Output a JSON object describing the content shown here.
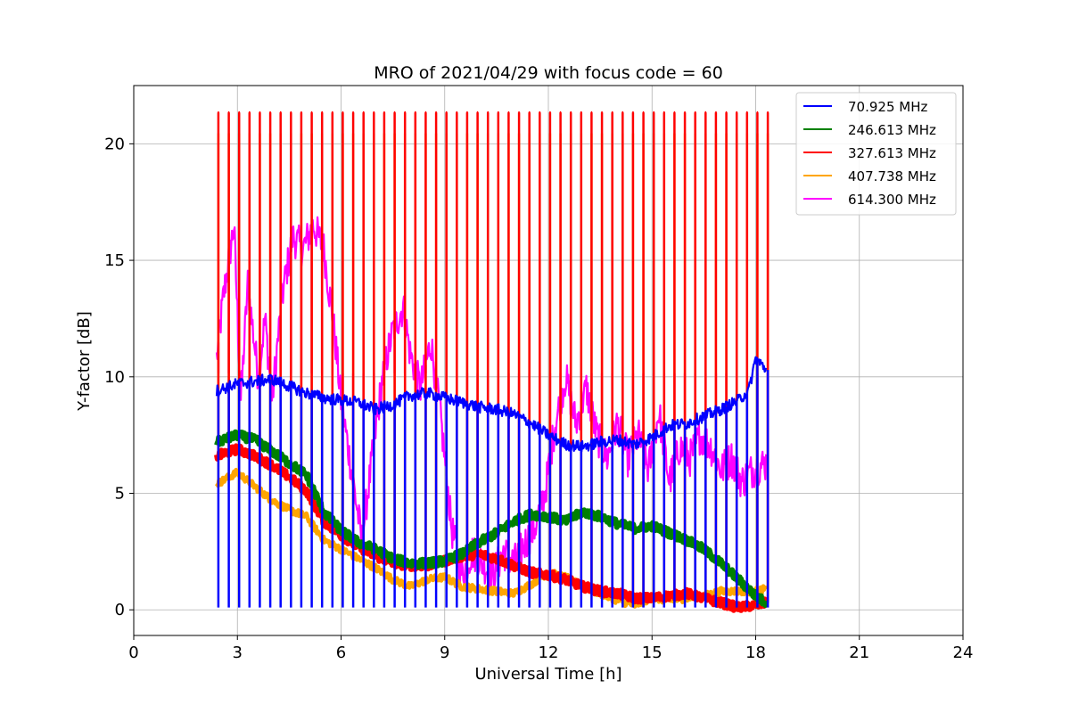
{
  "chart_data": {
    "type": "line",
    "title": "MRO of 2021/04/29 with focus code = 60",
    "xlabel": "Universal Time [h]",
    "ylabel": "Y-factor [dB]",
    "xlim": [
      0,
      24
    ],
    "ylim": [
      -1.1,
      22.5
    ],
    "xticks": [
      0,
      3,
      6,
      9,
      12,
      15,
      18,
      21,
      24
    ],
    "yticks": [
      0,
      5,
      10,
      15,
      20
    ],
    "grid": true,
    "legend_position": "top-right",
    "calibration_pulses": {
      "start_h": 2.45,
      "period_h": 0.3,
      "end_h": 18.35
    },
    "series": [
      {
        "name": "70.925 MHz",
        "color": "#0000ff",
        "pulse_low": 0.1,
        "x": [
          2.4,
          3.0,
          3.5,
          4.0,
          4.5,
          5.0,
          5.5,
          6.0,
          6.5,
          7.0,
          7.5,
          8.0,
          8.5,
          9.0,
          9.5,
          10.0,
          10.5,
          11.0,
          11.5,
          12.0,
          12.5,
          13.0,
          13.5,
          14.0,
          14.5,
          15.0,
          15.5,
          16.0,
          16.5,
          17.0,
          17.5,
          17.8,
          18.0,
          18.3
        ],
        "values": [
          9.4,
          9.7,
          9.8,
          9.9,
          9.6,
          9.3,
          9.1,
          9.0,
          8.9,
          8.6,
          8.8,
          9.2,
          9.3,
          9.1,
          8.9,
          8.7,
          8.6,
          8.4,
          8.0,
          7.5,
          7.1,
          7.0,
          7.2,
          7.3,
          7.1,
          7.4,
          7.9,
          8.0,
          8.3,
          8.6,
          9.0,
          9.4,
          10.8,
          10.3
        ]
      },
      {
        "name": "246.613 MHz",
        "color": "#008000",
        "pulse_low": null,
        "x": [
          2.4,
          3.0,
          3.5,
          4.0,
          4.5,
          5.0,
          5.5,
          6.0,
          6.5,
          7.0,
          7.5,
          8.0,
          8.5,
          9.0,
          9.5,
          10.0,
          10.5,
          11.0,
          11.5,
          12.0,
          12.5,
          13.0,
          13.5,
          14.0,
          14.5,
          15.0,
          15.5,
          16.0,
          16.5,
          17.0,
          17.5,
          18.0,
          18.3
        ],
        "values": [
          7.2,
          7.5,
          7.3,
          6.8,
          6.3,
          5.8,
          4.2,
          3.4,
          2.9,
          2.6,
          2.2,
          2.0,
          2.0,
          2.1,
          2.4,
          2.9,
          3.3,
          3.8,
          4.1,
          4.0,
          3.8,
          4.2,
          4.0,
          3.7,
          3.5,
          3.6,
          3.3,
          3.0,
          2.6,
          2.0,
          1.3,
          0.6,
          0.3
        ]
      },
      {
        "name": "327.613 MHz",
        "color": "#ff0000",
        "pulse_high": 21.35,
        "x": [
          2.4,
          3.0,
          3.5,
          4.0,
          4.5,
          5.0,
          5.5,
          6.0,
          6.5,
          7.0,
          7.5,
          8.0,
          8.5,
          9.0,
          9.5,
          10.0,
          10.5,
          11.0,
          11.5,
          12.0,
          12.5,
          13.0,
          13.5,
          14.0,
          14.5,
          15.0,
          15.5,
          16.0,
          16.5,
          17.0,
          17.5,
          18.0,
          18.3
        ],
        "values": [
          6.6,
          6.9,
          6.6,
          6.2,
          5.7,
          5.1,
          3.8,
          3.2,
          2.7,
          2.3,
          2.0,
          1.9,
          1.9,
          2.1,
          2.3,
          2.4,
          2.2,
          1.9,
          1.6,
          1.5,
          1.3,
          1.0,
          0.8,
          0.7,
          0.5,
          0.5,
          0.6,
          0.7,
          0.5,
          0.3,
          0.1,
          0.2,
          0.3
        ]
      },
      {
        "name": "407.738 MHz",
        "color": "#ffa500",
        "pulse_high": 20.45,
        "x": [
          2.4,
          3.0,
          3.5,
          4.0,
          4.5,
          5.0,
          5.5,
          6.0,
          6.5,
          7.0,
          7.5,
          8.0,
          8.5,
          9.0,
          9.5,
          10.0,
          10.5,
          11.0,
          11.5,
          12.0,
          12.5,
          13.0,
          13.5,
          14.0,
          14.5,
          15.0,
          15.5,
          16.0,
          16.5,
          17.0,
          17.5,
          18.0,
          18.3
        ],
        "values": [
          5.4,
          5.9,
          5.3,
          4.7,
          4.3,
          4.0,
          3.0,
          2.6,
          2.2,
          1.8,
          1.3,
          1.0,
          1.3,
          1.4,
          1.0,
          0.9,
          0.8,
          0.7,
          1.1,
          1.6,
          1.4,
          1.0,
          0.7,
          0.4,
          0.2,
          0.5,
          0.4,
          0.5,
          0.6,
          0.8,
          0.8,
          0.8,
          0.9
        ]
      },
      {
        "name": "614.300 MHz",
        "color": "#ff00ff",
        "pulse_high": 10.15,
        "x": [
          2.4,
          2.6,
          2.9,
          3.1,
          3.3,
          3.6,
          3.8,
          4.0,
          4.3,
          4.6,
          4.9,
          5.2,
          5.5,
          5.8,
          6.0,
          6.3,
          6.6,
          6.9,
          7.2,
          7.5,
          7.8,
          8.0,
          8.3,
          8.6,
          8.9,
          9.2,
          9.5,
          9.8,
          10.1,
          10.4,
          10.7,
          11.0,
          11.3,
          11.6,
          11.9,
          12.2,
          12.5,
          12.8,
          13.1,
          13.4,
          13.7,
          14.0,
          14.3,
          14.6,
          14.9,
          15.2,
          15.5,
          15.8,
          16.1,
          16.4,
          16.7,
          17.0,
          17.3,
          17.6,
          17.9,
          18.3
        ],
        "values": [
          10.8,
          13.5,
          16.5,
          9.0,
          14.0,
          10.0,
          12.5,
          9.0,
          13.5,
          16.0,
          15.5,
          16.5,
          15.5,
          12.0,
          9.0,
          6.0,
          3.0,
          6.5,
          10.0,
          12.0,
          13.0,
          11.0,
          9.5,
          11.5,
          8.0,
          3.5,
          1.5,
          2.5,
          2.0,
          1.5,
          2.5,
          2.0,
          2.8,
          3.5,
          5.0,
          8.0,
          10.0,
          8.0,
          9.5,
          7.5,
          6.5,
          8.0,
          6.5,
          7.5,
          6.0,
          8.5,
          5.5,
          7.0,
          6.5,
          7.5,
          7.0,
          6.0,
          6.5,
          5.5,
          6.0,
          6.3
        ]
      }
    ]
  }
}
